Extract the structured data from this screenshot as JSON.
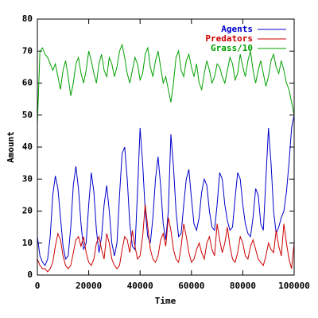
{
  "chart_data": {
    "type": "line",
    "xlabel": "Time",
    "ylabel": "Amount",
    "x": [
      0,
      1000,
      2000,
      3000,
      4000,
      5000,
      6000,
      7000,
      8000,
      9000,
      10000,
      11000,
      12000,
      13000,
      14000,
      15000,
      16000,
      17000,
      18000,
      19000,
      20000,
      21000,
      22000,
      23000,
      24000,
      25000,
      26000,
      27000,
      28000,
      29000,
      30000,
      31000,
      32000,
      33000,
      34000,
      35000,
      36000,
      37000,
      38000,
      39000,
      40000,
      41000,
      42000,
      43000,
      44000,
      45000,
      46000,
      47000,
      48000,
      49000,
      50000,
      51000,
      52000,
      53000,
      54000,
      55000,
      56000,
      57000,
      58000,
      59000,
      60000,
      61000,
      62000,
      63000,
      64000,
      65000,
      66000,
      67000,
      68000,
      69000,
      70000,
      71000,
      72000,
      73000,
      74000,
      75000,
      76000,
      77000,
      78000,
      79000,
      80000,
      81000,
      82000,
      83000,
      84000,
      85000,
      86000,
      87000,
      88000,
      89000,
      90000,
      91000,
      92000,
      93000,
      94000,
      95000,
      96000,
      97000,
      98000,
      99000,
      100000
    ],
    "series": [
      {
        "name": "Agents",
        "color": "#0000cc",
        "values": [
          12,
          6,
          4,
          3,
          5,
          12,
          25,
          31,
          27,
          18,
          9,
          5,
          6,
          15,
          28,
          34,
          27,
          16,
          8,
          10,
          22,
          32,
          26,
          14,
          7,
          12,
          22,
          28,
          20,
          10,
          6,
          10,
          25,
          38,
          40,
          30,
          16,
          9,
          8,
          26,
          46,
          35,
          20,
          12,
          10,
          18,
          30,
          37,
          28,
          16,
          11,
          20,
          44,
          34,
          20,
          12,
          13,
          22,
          30,
          33,
          24,
          16,
          14,
          18,
          26,
          30,
          28,
          20,
          15,
          14,
          22,
          32,
          30,
          22,
          17,
          14,
          15,
          24,
          32,
          30,
          22,
          16,
          13,
          12,
          18,
          27,
          25,
          16,
          14,
          30,
          46,
          35,
          20,
          13,
          15,
          18,
          20,
          26,
          35,
          46,
          50
        ]
      },
      {
        "name": "Predators",
        "color": "#cc0000",
        "values": [
          5,
          3,
          2,
          2,
          1,
          2,
          4,
          9,
          13,
          11,
          6,
          3,
          2,
          3,
          7,
          11,
          12,
          9,
          12,
          7,
          4,
          3,
          5,
          10,
          12,
          8,
          5,
          13,
          10,
          5,
          3,
          2,
          3,
          8,
          12,
          11,
          7,
          14,
          9,
          5,
          6,
          12,
          22,
          15,
          8,
          5,
          4,
          6,
          11,
          13,
          9,
          18,
          14,
          8,
          5,
          4,
          9,
          16,
          12,
          7,
          4,
          5,
          8,
          10,
          7,
          5,
          10,
          12,
          8,
          6,
          16,
          11,
          7,
          10,
          15,
          9,
          5,
          4,
          7,
          12,
          10,
          6,
          5,
          9,
          11,
          8,
          5,
          4,
          3,
          6,
          10,
          8,
          7,
          14,
          9,
          6,
          16,
          10,
          5,
          2,
          10
        ]
      },
      {
        "name": "Grass/10",
        "color": "#00a000",
        "values": [
          47,
          70,
          71,
          69,
          68,
          66,
          64,
          66,
          62,
          58,
          64,
          67,
          62,
          56,
          60,
          66,
          68,
          63,
          60,
          64,
          70,
          67,
          63,
          60,
          66,
          69,
          64,
          62,
          68,
          66,
          62,
          65,
          70,
          72,
          68,
          63,
          60,
          64,
          68,
          66,
          61,
          63,
          69,
          71,
          65,
          62,
          67,
          70,
          65,
          60,
          62,
          58,
          54,
          60,
          68,
          70,
          64,
          62,
          67,
          69,
          65,
          62,
          66,
          60,
          58,
          63,
          67,
          64,
          60,
          62,
          66,
          65,
          62,
          60,
          64,
          68,
          66,
          61,
          63,
          69,
          65,
          62,
          67,
          70,
          64,
          60,
          64,
          67,
          63,
          59,
          62,
          67,
          69,
          65,
          63,
          67,
          64,
          60,
          58,
          54,
          50
        ]
      }
    ],
    "xlim": [
      0,
      100000
    ],
    "ylim": [
      0,
      80
    ],
    "xticks": [
      0,
      20000,
      40000,
      60000,
      80000,
      100000
    ],
    "yticks": [
      0,
      10,
      20,
      30,
      40,
      50,
      60,
      70,
      80
    ],
    "legend": "top-right",
    "grid": false
  }
}
